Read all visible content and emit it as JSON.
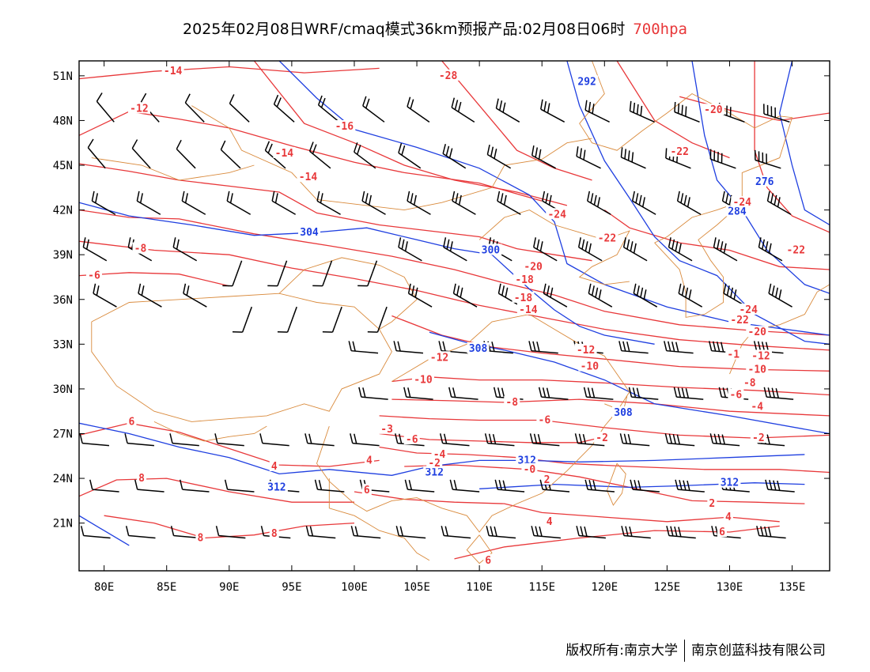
{
  "title": {
    "main": "2025年02月08日WRF/cmaq模式36km预报产品:02月08日06时",
    "level": "700hpa"
  },
  "axes": {
    "lat_labels": [
      "51N",
      "48N",
      "45N",
      "42N",
      "39N",
      "36N",
      "33N",
      "30N",
      "27N",
      "24N",
      "21N"
    ],
    "lat_values": [
      51,
      48,
      45,
      42,
      39,
      36,
      33,
      30,
      27,
      24,
      21
    ],
    "lon_labels": [
      "80E",
      "85E",
      "90E",
      "95E",
      "100E",
      "105E",
      "110E",
      "115E",
      "120E",
      "125E",
      "130E",
      "135E"
    ],
    "lon_values": [
      80,
      85,
      90,
      95,
      100,
      105,
      110,
      115,
      120,
      125,
      130,
      135
    ],
    "lon_range": [
      78,
      138
    ],
    "lat_range": [
      17.8,
      52
    ]
  },
  "colors": {
    "temperature": "#e8383a",
    "height": "#1f3fe0",
    "border": "#d98a3c",
    "wind": "#000000",
    "frame": "#000000"
  },
  "height_labels": [
    {
      "text": "292",
      "lon": 118.6,
      "lat": 50.6
    },
    {
      "text": "276",
      "lon": 132.8,
      "lat": 43.9
    },
    {
      "text": "284",
      "lon": 130.6,
      "lat": 41.9
    },
    {
      "text": "304",
      "lon": 96.4,
      "lat": 40.5
    },
    {
      "text": "300",
      "lon": 110.9,
      "lat": 39.3
    },
    {
      "text": "308",
      "lon": 109.9,
      "lat": 32.7
    },
    {
      "text": "308",
      "lon": 121.5,
      "lat": 28.4
    },
    {
      "text": "312",
      "lon": 113.8,
      "lat": 25.2
    },
    {
      "text": "312",
      "lon": 106.4,
      "lat": 24.4
    },
    {
      "text": "312",
      "lon": 93.8,
      "lat": 23.4
    },
    {
      "text": "312",
      "lon": 130.0,
      "lat": 23.7
    }
  ],
  "temperature_labels": [
    {
      "text": "-14",
      "lon": 85.5,
      "lat": 51.3
    },
    {
      "text": "-28",
      "lon": 107.5,
      "lat": 51.0
    },
    {
      "text": "-12",
      "lon": 82.8,
      "lat": 48.8
    },
    {
      "text": "-16",
      "lon": 99.2,
      "lat": 47.6
    },
    {
      "text": "-20",
      "lon": 128.7,
      "lat": 48.7
    },
    {
      "text": "-22",
      "lon": 126.0,
      "lat": 45.9
    },
    {
      "text": "-14",
      "lon": 94.4,
      "lat": 45.8
    },
    {
      "text": "-14",
      "lon": 96.3,
      "lat": 44.2
    },
    {
      "text": "-24",
      "lon": 131.0,
      "lat": 42.5
    },
    {
      "text": "-24",
      "lon": 116.2,
      "lat": 41.7
    },
    {
      "text": "-22",
      "lon": 120.2,
      "lat": 40.1
    },
    {
      "text": "-8",
      "lon": 82.9,
      "lat": 39.4
    },
    {
      "text": "-22",
      "lon": 135.3,
      "lat": 39.3
    },
    {
      "text": "-20",
      "lon": 114.3,
      "lat": 38.2
    },
    {
      "text": "-18",
      "lon": 113.6,
      "lat": 37.3
    },
    {
      "text": "-6",
      "lon": 79.2,
      "lat": 37.6
    },
    {
      "text": "-18",
      "lon": 113.5,
      "lat": 36.1
    },
    {
      "text": "-14",
      "lon": 113.9,
      "lat": 35.3
    },
    {
      "text": "-24",
      "lon": 131.5,
      "lat": 35.3
    },
    {
      "text": "-22",
      "lon": 130.8,
      "lat": 34.6
    },
    {
      "text": "-20",
      "lon": 132.2,
      "lat": 33.8
    },
    {
      "text": "-12",
      "lon": 118.5,
      "lat": 32.6
    },
    {
      "text": "-12",
      "lon": 106.8,
      "lat": 32.1
    },
    {
      "text": "-1",
      "lon": 130.3,
      "lat": 32.3
    },
    {
      "text": "-12",
      "lon": 132.5,
      "lat": 32.2
    },
    {
      "text": "-10",
      "lon": 118.8,
      "lat": 31.5
    },
    {
      "text": "-10",
      "lon": 132.2,
      "lat": 31.3
    },
    {
      "text": "-10",
      "lon": 105.5,
      "lat": 30.6
    },
    {
      "text": "-8",
      "lon": 131.6,
      "lat": 30.4
    },
    {
      "text": "-6",
      "lon": 130.5,
      "lat": 29.6
    },
    {
      "text": "-8",
      "lon": 112.6,
      "lat": 29.1
    },
    {
      "text": "-4",
      "lon": 132.2,
      "lat": 28.8
    },
    {
      "text": "-6",
      "lon": 115.2,
      "lat": 27.9
    },
    {
      "text": "6",
      "lon": 82.2,
      "lat": 27.8
    },
    {
      "text": "-3",
      "lon": 102.6,
      "lat": 27.3
    },
    {
      "text": "-2",
      "lon": 132.3,
      "lat": 26.7
    },
    {
      "text": "-2",
      "lon": 119.8,
      "lat": 26.7
    },
    {
      "text": "-6",
      "lon": 104.6,
      "lat": 26.6
    },
    {
      "text": "-4",
      "lon": 106.8,
      "lat": 25.6
    },
    {
      "text": "4",
      "lon": 101.2,
      "lat": 25.2
    },
    {
      "text": "-2",
      "lon": 106.4,
      "lat": 25.0
    },
    {
      "text": "4",
      "lon": 93.6,
      "lat": 24.8
    },
    {
      "text": "-0",
      "lon": 114.0,
      "lat": 24.6
    },
    {
      "text": "2",
      "lon": 115.4,
      "lat": 23.9
    },
    {
      "text": "8",
      "lon": 83.0,
      "lat": 24.0
    },
    {
      "text": "6",
      "lon": 101.0,
      "lat": 23.2
    },
    {
      "text": "2",
      "lon": 128.6,
      "lat": 22.3
    },
    {
      "text": "4",
      "lon": 129.9,
      "lat": 21.4
    },
    {
      "text": "4",
      "lon": 115.6,
      "lat": 21.1
    },
    {
      "text": "6",
      "lon": 129.4,
      "lat": 20.4
    },
    {
      "text": "8",
      "lon": 87.7,
      "lat": 20.0
    },
    {
      "text": "8",
      "lon": 93.6,
      "lat": 20.3
    },
    {
      "text": "6",
      "lon": 110.7,
      "lat": 18.5
    }
  ],
  "footer": {
    "copyright": "版权所有:南京大学",
    "company": "南京创蓝科技有限公司"
  }
}
